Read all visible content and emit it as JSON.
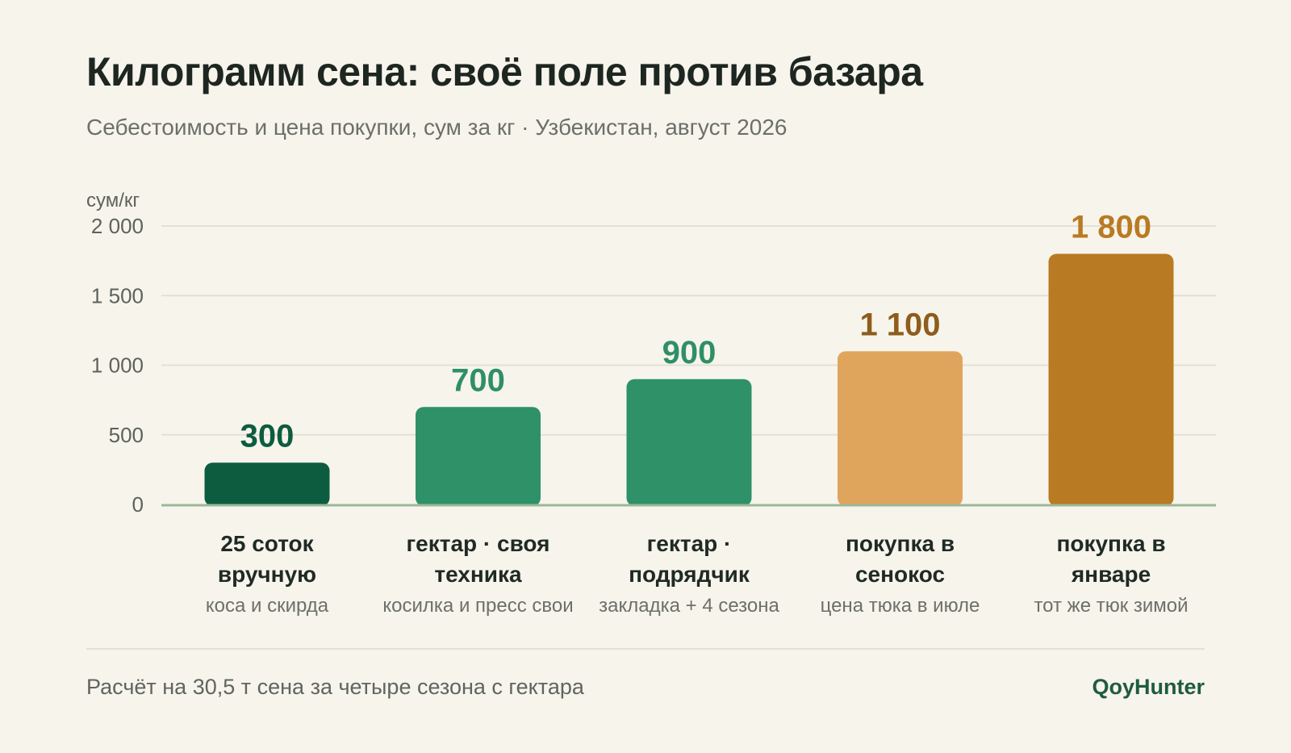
{
  "header": {
    "title": "Килограмм сена: своё поле против базара",
    "subtitle": "Себестоимость и цена покупки, сум за кг · Узбекистан, август 2026"
  },
  "footer": {
    "note": "Расчёт на 30,5 т сена за четыре сезона с гектара",
    "brand": "QoyHunter"
  },
  "chart_data": {
    "type": "bar",
    "title": "Килограмм сена: своё поле против базара",
    "subtitle": "Себестоимость и цена покупки, сум за кг · Узбекистан, август 2026",
    "ylabel": "сум/кг",
    "xlabel": "",
    "ylim": [
      0,
      2000
    ],
    "yticks": [
      {
        "value": 0,
        "label": "0"
      },
      {
        "value": 500,
        "label": "500"
      },
      {
        "value": 1000,
        "label": "1 000"
      },
      {
        "value": 1500,
        "label": "1 500"
      },
      {
        "value": 2000,
        "label": "2 000"
      }
    ],
    "grid": true,
    "legend": "none",
    "bars": [
      {
        "label_lines": [
          "25 соток",
          "вручную"
        ],
        "sublabel": "коса и скирда",
        "value": 300,
        "value_label": "300",
        "color": "#0e5c40",
        "label_color": "#0e5c40"
      },
      {
        "label_lines": [
          "гектар · своя",
          "техника"
        ],
        "sublabel": "косилка и пресс свои",
        "value": 700,
        "value_label": "700",
        "color": "#2f9168",
        "label_color": "#2f8f66"
      },
      {
        "label_lines": [
          "гектар ·",
          "подрядчик"
        ],
        "sublabel": "закладка + 4 сезона",
        "value": 900,
        "value_label": "900",
        "color": "#2f9168",
        "label_color": "#2f8f66"
      },
      {
        "label_lines": [
          "покупка в",
          "сенокос"
        ],
        "sublabel": "цена тюка в июле",
        "value": 1100,
        "value_label": "1 100",
        "color": "#e0a55c",
        "label_color": "#8e5c1c"
      },
      {
        "label_lines": [
          "покупка в",
          "январе"
        ],
        "sublabel": "тот же тюк зимой",
        "value": 1800,
        "value_label": "1 800",
        "color": "#b87a22",
        "label_color": "#b97a24"
      }
    ],
    "colors": {
      "grid": "#e4e0d4",
      "axis": "#9bb89a",
      "tick_text": "#5d625c",
      "category_text": "#1f2a24",
      "sublabel_text": "#6b7069"
    }
  }
}
